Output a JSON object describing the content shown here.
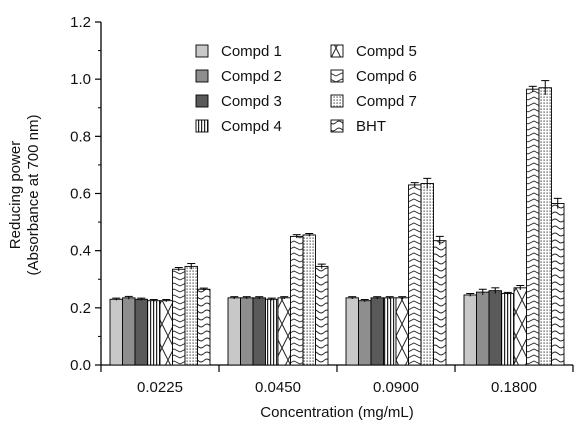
{
  "chart_data": {
    "type": "bar",
    "xlabel": "Concentration (mg/mL)",
    "ylabel_lines": [
      "Reducing power",
      "(Absorbance at 700 nm)"
    ],
    "ylim": [
      0.0,
      1.2
    ],
    "yticks": [
      "0.0",
      "0.2",
      "0.4",
      "0.6",
      "0.8",
      "1.0",
      "1.2"
    ],
    "categories": [
      "0.0225",
      "0.0450",
      "0.0900",
      "0.1800"
    ],
    "legend_placement": "top-center, two columns",
    "error_bars": true,
    "series": [
      {
        "name": "Compd 1",
        "pattern": "light-gray",
        "values": [
          0.23,
          0.235,
          0.235,
          0.245
        ],
        "errors": [
          0.004,
          0.004,
          0.004,
          0.005
        ]
      },
      {
        "name": "Compd 2",
        "pattern": "mid-gray",
        "values": [
          0.235,
          0.235,
          0.225,
          0.255
        ],
        "errors": [
          0.005,
          0.004,
          0.004,
          0.01
        ]
      },
      {
        "name": "Compd 3",
        "pattern": "dark-gray",
        "values": [
          0.23,
          0.235,
          0.235,
          0.26
        ],
        "errors": [
          0.004,
          0.004,
          0.004,
          0.01
        ]
      },
      {
        "name": "Compd 4",
        "pattern": "vertical-lines",
        "values": [
          0.225,
          0.23,
          0.235,
          0.25
        ],
        "errors": [
          0.004,
          0.004,
          0.004,
          0.004
        ]
      },
      {
        "name": "Compd 5",
        "pattern": "cross-hatch",
        "values": [
          0.225,
          0.235,
          0.235,
          0.27
        ],
        "errors": [
          0.004,
          0.004,
          0.004,
          0.008
        ]
      },
      {
        "name": "Compd 6",
        "pattern": "zigzag",
        "values": [
          0.335,
          0.45,
          0.63,
          0.965
        ],
        "errors": [
          0.006,
          0.006,
          0.008,
          0.01
        ]
      },
      {
        "name": "Compd 7",
        "pattern": "dotted-vertical",
        "values": [
          0.345,
          0.455,
          0.635,
          0.97
        ],
        "errors": [
          0.01,
          0.005,
          0.018,
          0.025
        ]
      },
      {
        "name": "BHT",
        "pattern": "wavy",
        "values": [
          0.265,
          0.345,
          0.435,
          0.565
        ],
        "errors": [
          0.004,
          0.008,
          0.015,
          0.018
        ]
      }
    ]
  }
}
